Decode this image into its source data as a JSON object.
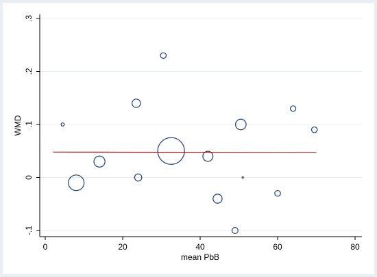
{
  "chart_data": {
    "type": "scatter",
    "title": "",
    "xlabel": "mean PbB",
    "ylabel": "WMD",
    "xlim": [
      0,
      80
    ],
    "ylim": [
      -0.1,
      0.3
    ],
    "xticks": [
      0,
      20,
      40,
      60,
      80
    ],
    "xtick_labels": [
      "0",
      "20",
      "40",
      "60",
      "80"
    ],
    "yticks": [
      -0.1,
      0,
      0.1,
      0.2,
      0.3
    ],
    "ytick_labels": [
      "-.1",
      "0",
      ".1",
      ".2",
      ".3"
    ],
    "grid": "horizontal",
    "points": [
      {
        "x": 4.5,
        "y": 0.1,
        "weight": 0.5
      },
      {
        "x": 8.0,
        "y": -0.01,
        "weight": 12
      },
      {
        "x": 14.0,
        "y": 0.03,
        "weight": 6
      },
      {
        "x": 23.5,
        "y": 0.14,
        "weight": 3.5
      },
      {
        "x": 24.0,
        "y": 0.0,
        "weight": 2.5
      },
      {
        "x": 30.5,
        "y": 0.23,
        "weight": 1.6
      },
      {
        "x": 32.5,
        "y": 0.05,
        "weight": 35
      },
      {
        "x": 42.0,
        "y": 0.04,
        "weight": 5
      },
      {
        "x": 44.5,
        "y": -0.04,
        "weight": 4
      },
      {
        "x": 49.0,
        "y": -0.1,
        "weight": 1.8
      },
      {
        "x": 50.5,
        "y": 0.1,
        "weight": 5.5
      },
      {
        "x": 51.0,
        "y": 0.0,
        "weight": 0.1
      },
      {
        "x": 60.0,
        "y": -0.03,
        "weight": 1.6
      },
      {
        "x": 64.0,
        "y": 0.13,
        "weight": 1.5
      },
      {
        "x": 69.5,
        "y": 0.09,
        "weight": 1.6
      }
    ],
    "fit_line": {
      "x": [
        2,
        70
      ],
      "y": [
        0.048,
        0.047
      ],
      "color": "#8b1a1a"
    },
    "marker_color": "#1f3f7a",
    "background_color": "#ffffff",
    "outer_background_color": "#e8eef2",
    "grid_color": "#e6ecef"
  }
}
